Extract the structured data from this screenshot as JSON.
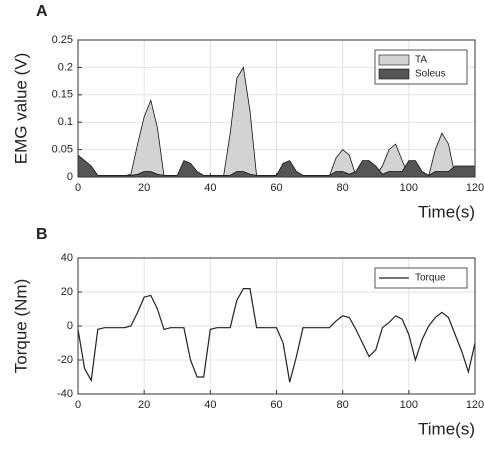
{
  "chart_data": [
    {
      "type": "area",
      "panel_label": "A",
      "xlabel": "Time(s)",
      "ylabel": "EMG value (V)",
      "x": [
        0,
        2,
        4,
        6,
        8,
        10,
        12,
        14,
        16,
        18,
        20,
        22,
        24,
        26,
        28,
        30,
        32,
        34,
        36,
        38,
        40,
        42,
        44,
        46,
        48,
        50,
        52,
        54,
        56,
        58,
        60,
        62,
        64,
        66,
        68,
        70,
        72,
        74,
        76,
        78,
        80,
        82,
        84,
        86,
        88,
        90,
        92,
        94,
        96,
        98,
        100,
        102,
        104,
        106,
        108,
        110,
        112,
        114,
        116,
        118,
        120
      ],
      "series": [
        {
          "name": "TA",
          "color": "#d3d3d3",
          "values": [
            0.002,
            0.002,
            0.002,
            0.002,
            0.002,
            0.002,
            0.002,
            0.002,
            0.005,
            0.06,
            0.11,
            0.14,
            0.09,
            0.002,
            0.002,
            0.002,
            0.002,
            0.002,
            0.002,
            0.002,
            0.002,
            0.002,
            0.002,
            0.08,
            0.18,
            0.2,
            0.12,
            0.002,
            0.002,
            0.002,
            0.002,
            0.002,
            0.002,
            0.002,
            0.002,
            0.002,
            0.002,
            0.002,
            0.002,
            0.035,
            0.05,
            0.04,
            0.002,
            0.002,
            0.002,
            0.002,
            0.02,
            0.05,
            0.06,
            0.03,
            0.002,
            0.002,
            0.002,
            0.002,
            0.05,
            0.08,
            0.06,
            0.002,
            0.002,
            0.002,
            0.002
          ]
        },
        {
          "name": "Soleus",
          "color": "#555555",
          "values": [
            0.04,
            0.03,
            0.02,
            0.003,
            0.003,
            0.003,
            0.003,
            0.003,
            0.003,
            0.005,
            0.01,
            0.01,
            0.005,
            0.003,
            0.003,
            0.003,
            0.03,
            0.025,
            0.01,
            0.003,
            0.003,
            0.003,
            0.003,
            0.003,
            0.01,
            0.01,
            0.005,
            0.003,
            0.003,
            0.003,
            0.003,
            0.025,
            0.03,
            0.01,
            0.003,
            0.003,
            0.003,
            0.003,
            0.003,
            0.01,
            0.01,
            0.005,
            0.01,
            0.03,
            0.03,
            0.02,
            0.005,
            0.01,
            0.01,
            0.01,
            0.03,
            0.03,
            0.01,
            0.003,
            0.01,
            0.01,
            0.01,
            0.02,
            0.02,
            0.02,
            0.02
          ]
        }
      ],
      "xlim": [
        0,
        120
      ],
      "xticks": [
        0,
        20,
        40,
        60,
        80,
        100,
        120
      ],
      "ylim": [
        0,
        0.25
      ],
      "yticks": [
        0,
        0.05,
        0.1,
        0.15,
        0.2,
        0.25
      ],
      "grid": true,
      "legend": "upper right"
    },
    {
      "type": "line",
      "panel_label": "B",
      "xlabel": "Time(s)",
      "ylabel": "Torque (Nm)",
      "x": [
        0,
        2,
        4,
        6,
        8,
        10,
        12,
        14,
        16,
        18,
        20,
        22,
        24,
        26,
        28,
        30,
        32,
        34,
        36,
        38,
        40,
        42,
        44,
        46,
        48,
        50,
        52,
        54,
        56,
        58,
        60,
        62,
        64,
        66,
        68,
        70,
        72,
        74,
        76,
        78,
        80,
        82,
        84,
        86,
        88,
        90,
        92,
        94,
        96,
        98,
        100,
        102,
        104,
        106,
        108,
        110,
        112,
        114,
        116,
        118,
        120
      ],
      "series": [
        {
          "name": "Torque",
          "color": "#222222",
          "values": [
            -2,
            -25,
            -32,
            -2,
            -1,
            -1,
            -1,
            -1,
            0,
            8,
            17,
            18,
            10,
            -2,
            -1,
            -1,
            -1,
            -20,
            -30,
            -30,
            -2,
            -1,
            -1,
            -1,
            15,
            22,
            22,
            -1,
            -1,
            -1,
            -1,
            -10,
            -33,
            -18,
            -1,
            -1,
            -1,
            -1,
            -1,
            3,
            6,
            5,
            -2,
            -10,
            -18,
            -14,
            -1,
            2,
            6,
            4,
            -5,
            -20,
            -8,
            0,
            5,
            8,
            5,
            -5,
            -15,
            -27,
            -10
          ]
        }
      ],
      "xlim": [
        0,
        120
      ],
      "xticks": [
        0,
        20,
        40,
        60,
        80,
        100,
        120
      ],
      "ylim": [
        -40,
        40
      ],
      "yticks": [
        -40,
        -20,
        0,
        20,
        40
      ],
      "grid": true,
      "legend": "upper right"
    }
  ]
}
